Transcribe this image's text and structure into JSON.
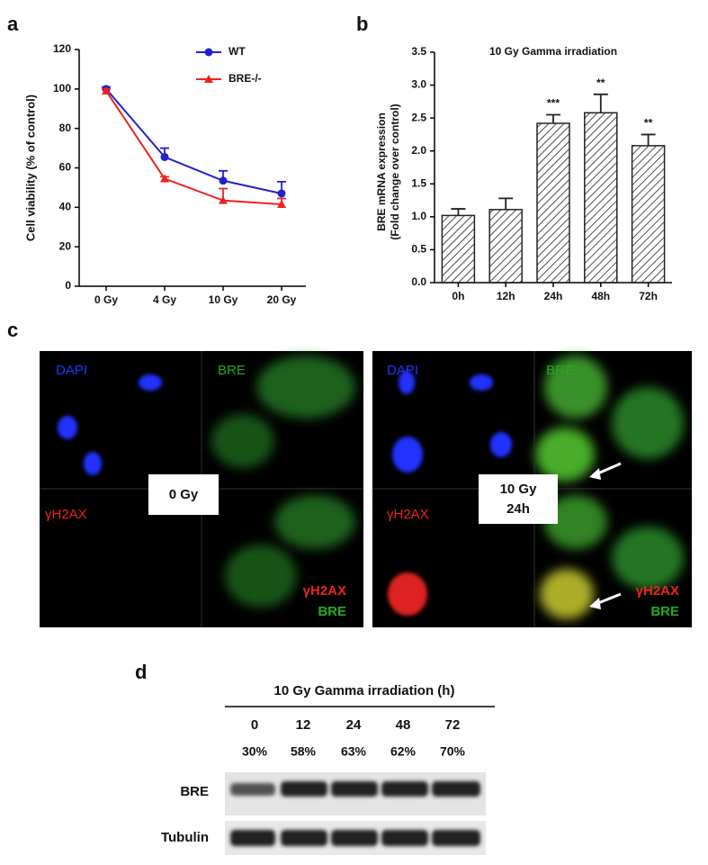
{
  "chart_data": [
    {
      "type": "line",
      "panel": "a",
      "ylabel": "Cell viability (% of control)",
      "categories": [
        "0 Gy",
        "4 Gy",
        "10 Gy",
        "20 Gy"
      ],
      "series": [
        {
          "name": "WT",
          "color": "#2222cc",
          "marker": "circle",
          "values": [
            100,
            65.5,
            53.5,
            47
          ],
          "errors": [
            1,
            4.5,
            5,
            6
          ]
        },
        {
          "name": "BRE-/-",
          "color": "#ee2222",
          "marker": "triangle",
          "values": [
            99,
            54.5,
            43.5,
            41.5
          ],
          "errors": [
            1,
            1,
            6,
            3
          ]
        }
      ],
      "ylim": [
        0,
        120
      ],
      "yticks": [
        0,
        20,
        40,
        60,
        80,
        100,
        120
      ],
      "legend": "top-right"
    },
    {
      "type": "bar",
      "panel": "b",
      "title": "10 Gy Gamma irradiation",
      "ylabel": [
        "BRE mRNA expression",
        "(Fold change over control)"
      ],
      "categories": [
        "0h",
        "12h",
        "24h",
        "48h",
        "72h"
      ],
      "values": [
        1.02,
        1.11,
        2.42,
        2.58,
        2.08
      ],
      "errors": [
        0.1,
        0.17,
        0.13,
        0.28,
        0.17
      ],
      "annotations": [
        null,
        null,
        "***",
        "**",
        "**"
      ],
      "color": "#222222",
      "hatch": true,
      "ylim": [
        0,
        3.5
      ],
      "yticks": [
        {
          "value": 0,
          "label": "0.0"
        },
        0.5,
        {
          "value": 1,
          "label": "1.0"
        },
        1.5,
        {
          "value": 2,
          "label": "2.0"
        },
        2.5,
        {
          "value": 3,
          "label": "3.0"
        },
        3.5
      ]
    }
  ],
  "panel_c": {
    "label": "c",
    "left": {
      "dapi": "DAPI",
      "bre": "BRE",
      "h2ax": "γH2AX",
      "condition": [
        "0 Gy"
      ],
      "merge": [
        "γH2AX",
        "BRE"
      ]
    },
    "right": {
      "dapi": "DAPI",
      "bre": "BRE",
      "h2ax": "γH2AX",
      "condition": [
        "10 Gy",
        "24h"
      ],
      "merge": [
        "γH2AX",
        "BRE"
      ]
    }
  },
  "panel_d": {
    "label": "d",
    "title": "10 Gy Gamma irradiation (h)",
    "lanes": [
      "0",
      "12",
      "24",
      "48",
      "72"
    ],
    "percentages": [
      "30%",
      "58%",
      "63%",
      "62%",
      "70%"
    ],
    "rows": [
      "BRE",
      "Tubulin"
    ]
  }
}
